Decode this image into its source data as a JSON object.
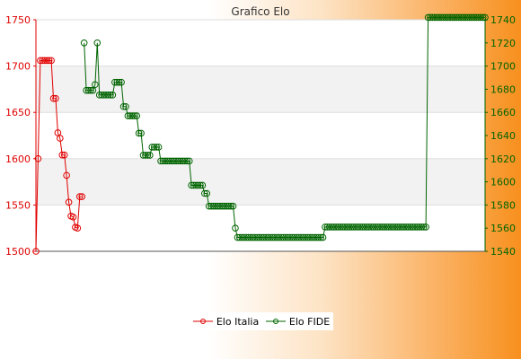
{
  "chart_data": {
    "type": "line",
    "title": "Grafico Elo",
    "xlabel": "",
    "ylabel": "",
    "grid": true,
    "legend_position": "bottom",
    "colors": {
      "left_axis": "#e00000",
      "right_axis": "#006400"
    },
    "y_left": {
      "ylim": [
        1500,
        1750
      ],
      "ticks": [
        "1500",
        "1550",
        "1600",
        "1650",
        "1700",
        "1750"
      ]
    },
    "y_right": {
      "ylim": [
        1540,
        1740
      ],
      "ticks": [
        "1540",
        "1560",
        "1580",
        "1600",
        "1620",
        "1640",
        "1660",
        "1680",
        "1700",
        "1720",
        "1740"
      ]
    },
    "series": [
      {
        "name": "Elo Italia",
        "axis": "left",
        "color": "#e00000",
        "points": [
          [
            0,
            1500
          ],
          [
            1,
            1600
          ],
          [
            2,
            1706
          ],
          [
            3,
            1706
          ],
          [
            4,
            1706
          ],
          [
            5,
            1706
          ],
          [
            6,
            1706
          ],
          [
            7,
            1706
          ],
          [
            8,
            1665
          ],
          [
            9,
            1665
          ],
          [
            10,
            1628
          ],
          [
            11,
            1622
          ],
          [
            12,
            1604
          ],
          [
            13,
            1604
          ],
          [
            14,
            1582
          ],
          [
            15,
            1553
          ],
          [
            16,
            1538
          ],
          [
            17,
            1537
          ],
          [
            18,
            1526
          ],
          [
            19,
            1525
          ],
          [
            20,
            1559
          ],
          [
            21,
            1559
          ]
        ]
      },
      {
        "name": "Elo FIDE",
        "axis": "right",
        "color": "#006400",
        "points": [
          [
            22,
            1720
          ],
          [
            23,
            1679
          ],
          [
            24,
            1679
          ],
          [
            25,
            1679
          ],
          [
            26,
            1679
          ],
          [
            27,
            1684
          ],
          [
            28,
            1720
          ],
          [
            29,
            1675
          ],
          [
            30,
            1675
          ],
          [
            31,
            1675
          ],
          [
            32,
            1675
          ],
          [
            33,
            1675
          ],
          [
            34,
            1675
          ],
          [
            35,
            1675
          ],
          [
            36,
            1686
          ],
          [
            37,
            1686
          ],
          [
            38,
            1686
          ],
          [
            39,
            1686
          ],
          [
            40,
            1665
          ],
          [
            41,
            1665
          ],
          [
            42,
            1657
          ],
          [
            43,
            1657
          ],
          [
            44,
            1657
          ],
          [
            45,
            1657
          ],
          [
            46,
            1657
          ],
          [
            47,
            1642
          ],
          [
            48,
            1642
          ],
          [
            49,
            1623
          ],
          [
            50,
            1623
          ],
          [
            51,
            1623
          ],
          [
            52,
            1623
          ],
          [
            53,
            1630
          ],
          [
            54,
            1630
          ],
          [
            55,
            1630
          ],
          [
            56,
            1630
          ],
          [
            57,
            1618
          ],
          [
            58,
            1618
          ],
          [
            59,
            1618
          ],
          [
            60,
            1618
          ],
          [
            61,
            1618
          ],
          [
            62,
            1618
          ],
          [
            63,
            1618
          ],
          [
            64,
            1618
          ],
          [
            65,
            1618
          ],
          [
            66,
            1618
          ],
          [
            67,
            1618
          ],
          [
            68,
            1618
          ],
          [
            69,
            1618
          ],
          [
            70,
            1618
          ],
          [
            71,
            1597
          ],
          [
            72,
            1597
          ],
          [
            73,
            1597
          ],
          [
            74,
            1597
          ],
          [
            75,
            1597
          ],
          [
            76,
            1597
          ],
          [
            77,
            1590
          ],
          [
            78,
            1590
          ],
          [
            79,
            1579
          ],
          [
            80,
            1579
          ],
          [
            81,
            1579
          ],
          [
            82,
            1579
          ],
          [
            83,
            1579
          ],
          [
            84,
            1579
          ],
          [
            85,
            1579
          ],
          [
            86,
            1579
          ],
          [
            87,
            1579
          ],
          [
            88,
            1579
          ],
          [
            89,
            1579
          ],
          [
            90,
            1579
          ],
          [
            91,
            1560
          ],
          [
            92,
            1552
          ],
          [
            93,
            1552
          ],
          [
            94,
            1552
          ],
          [
            95,
            1552
          ],
          [
            96,
            1552
          ],
          [
            97,
            1552
          ],
          [
            98,
            1552
          ],
          [
            99,
            1552
          ],
          [
            100,
            1552
          ],
          [
            101,
            1552
          ],
          [
            102,
            1552
          ],
          [
            103,
            1552
          ],
          [
            104,
            1552
          ],
          [
            105,
            1552
          ],
          [
            106,
            1552
          ],
          [
            107,
            1552
          ],
          [
            108,
            1552
          ],
          [
            109,
            1552
          ],
          [
            110,
            1552
          ],
          [
            111,
            1552
          ],
          [
            112,
            1552
          ],
          [
            113,
            1552
          ],
          [
            114,
            1552
          ],
          [
            115,
            1552
          ],
          [
            116,
            1552
          ],
          [
            117,
            1552
          ],
          [
            118,
            1552
          ],
          [
            119,
            1552
          ],
          [
            120,
            1552
          ],
          [
            121,
            1552
          ],
          [
            122,
            1552
          ],
          [
            123,
            1552
          ],
          [
            124,
            1552
          ],
          [
            125,
            1552
          ],
          [
            126,
            1552
          ],
          [
            127,
            1552
          ],
          [
            128,
            1552
          ],
          [
            129,
            1552
          ],
          [
            130,
            1552
          ],
          [
            131,
            1552
          ],
          [
            132,
            1561
          ],
          [
            133,
            1561
          ],
          [
            134,
            1561
          ],
          [
            135,
            1561
          ],
          [
            136,
            1561
          ],
          [
            137,
            1561
          ],
          [
            138,
            1561
          ],
          [
            139,
            1561
          ],
          [
            140,
            1561
          ],
          [
            141,
            1561
          ],
          [
            142,
            1561
          ],
          [
            143,
            1561
          ],
          [
            144,
            1561
          ],
          [
            145,
            1561
          ],
          [
            146,
            1561
          ],
          [
            147,
            1561
          ],
          [
            148,
            1561
          ],
          [
            149,
            1561
          ],
          [
            150,
            1561
          ],
          [
            151,
            1561
          ],
          [
            152,
            1561
          ],
          [
            153,
            1561
          ],
          [
            154,
            1561
          ],
          [
            155,
            1561
          ],
          [
            156,
            1561
          ],
          [
            157,
            1561
          ],
          [
            158,
            1561
          ],
          [
            159,
            1561
          ],
          [
            160,
            1561
          ],
          [
            161,
            1561
          ],
          [
            162,
            1561
          ],
          [
            163,
            1561
          ],
          [
            164,
            1561
          ],
          [
            165,
            1561
          ],
          [
            166,
            1561
          ],
          [
            167,
            1561
          ],
          [
            168,
            1561
          ],
          [
            169,
            1561
          ],
          [
            170,
            1561
          ],
          [
            171,
            1561
          ],
          [
            172,
            1561
          ],
          [
            173,
            1561
          ],
          [
            174,
            1561
          ],
          [
            175,
            1561
          ],
          [
            176,
            1561
          ],
          [
            177,
            1561
          ],
          [
            178,
            1561
          ],
          [
            179,
            1742
          ],
          [
            180,
            1742
          ],
          [
            181,
            1742
          ],
          [
            182,
            1742
          ],
          [
            183,
            1742
          ],
          [
            184,
            1742
          ],
          [
            185,
            1742
          ],
          [
            186,
            1742
          ],
          [
            187,
            1742
          ],
          [
            188,
            1742
          ],
          [
            189,
            1742
          ],
          [
            190,
            1742
          ],
          [
            191,
            1742
          ],
          [
            192,
            1742
          ],
          [
            193,
            1742
          ],
          [
            194,
            1742
          ],
          [
            195,
            1742
          ],
          [
            196,
            1742
          ],
          [
            197,
            1742
          ],
          [
            198,
            1742
          ],
          [
            199,
            1742
          ],
          [
            200,
            1742
          ],
          [
            201,
            1742
          ],
          [
            202,
            1742
          ],
          [
            203,
            1742
          ],
          [
            204,
            1742
          ],
          [
            205,
            1742
          ]
        ]
      }
    ]
  }
}
